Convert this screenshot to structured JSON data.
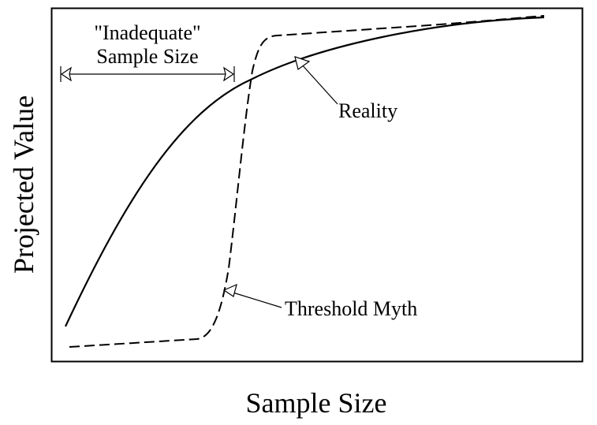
{
  "diagram": {
    "inadequate_label_line1": "\"Inadequate\"",
    "inadequate_label_line2": "Sample Size",
    "reality_label": "Reality",
    "threshold_label": "Threshold Myth",
    "x_axis_title": "Sample Size",
    "y_axis_title": "Projected Value",
    "curves": [
      {
        "name": "Reality",
        "style": "solid"
      },
      {
        "name": "Threshold Myth",
        "style": "dashed"
      }
    ],
    "colors": {
      "ink": "#000000",
      "background": "#ffffff"
    }
  }
}
